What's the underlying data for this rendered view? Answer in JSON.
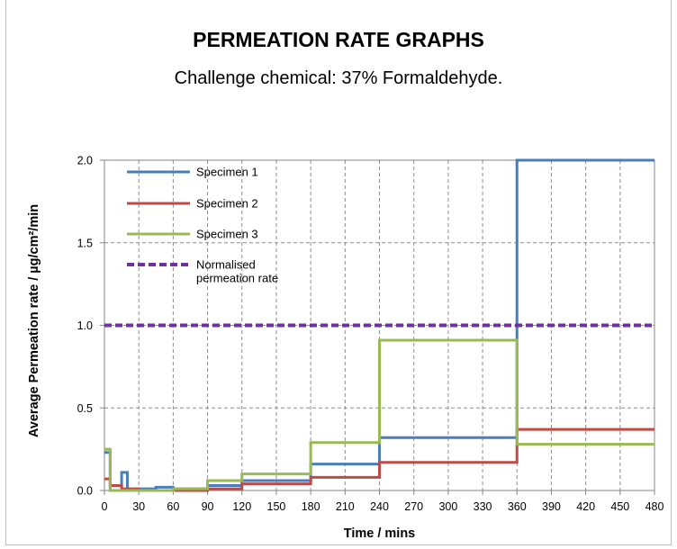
{
  "chart_data": {
    "type": "line",
    "title": "PERMEATION RATE GRAPHS",
    "subtitle": "Challenge chemical: 37% Formaldehyde.",
    "xlabel": "Time / mins",
    "ylabel": "Average Permeation rate / µg/cm²/min",
    "xlim": [
      0,
      480
    ],
    "ylim": [
      0,
      2.0
    ],
    "x_ticks": [
      "0",
      "30",
      "60",
      "90",
      "120",
      "150",
      "180",
      "210",
      "240",
      "270",
      "300",
      "330",
      "360",
      "390",
      "420",
      "450",
      "480"
    ],
    "y_ticks": [
      "0.0",
      "0.5",
      "1.0",
      "1.5",
      "2.0"
    ],
    "grid": "dashed",
    "legend_position": "top-left",
    "step": true,
    "series": [
      {
        "name": "Specimen 1",
        "color": "#4a7ebb",
        "x": [
          0,
          5,
          10,
          15,
          20,
          30,
          45,
          60,
          90,
          120,
          180,
          240,
          360,
          480
        ],
        "y": [
          0.23,
          0.0,
          0.0,
          0.11,
          0.0,
          0.01,
          0.02,
          0.01,
          0.03,
          0.06,
          0.16,
          0.32,
          2.0,
          2.0
        ]
      },
      {
        "name": "Specimen 2",
        "color": "#be4b48",
        "x": [
          0,
          5,
          15,
          30,
          60,
          90,
          120,
          180,
          240,
          360,
          480
        ],
        "y": [
          0.07,
          0.03,
          0.01,
          0.0,
          0.0,
          0.01,
          0.04,
          0.08,
          0.17,
          0.37,
          0.37
        ]
      },
      {
        "name": "Specimen 3",
        "color": "#98b954",
        "x": [
          0,
          5,
          30,
          60,
          90,
          120,
          180,
          240,
          360,
          480
        ],
        "y": [
          0.25,
          0.0,
          0.0,
          0.01,
          0.06,
          0.1,
          0.29,
          0.91,
          0.28,
          0.28
        ]
      },
      {
        "name": "Normalised permeation rate",
        "color": "#7030a0",
        "dashed": true,
        "x": [
          0,
          480
        ],
        "y": [
          1.0,
          1.0
        ]
      }
    ]
  }
}
